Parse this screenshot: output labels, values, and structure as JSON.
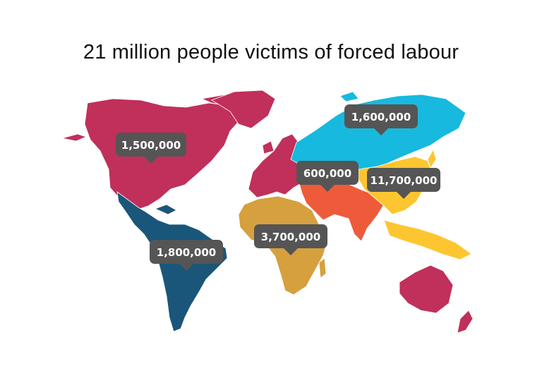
{
  "title": "21 million people victims of forced labour",
  "colors": {
    "north_america": "#c0305a",
    "latin_america": "#1a5679",
    "europe": "#c0305a",
    "africa": "#d6a03e",
    "middle_east": "#ee5b3a",
    "south_asia": "#ee5b3a",
    "russia_central_asia": "#17b9de",
    "east_asia_pacific": "#fdc631",
    "oceania": "#c0305a",
    "callout": "#555555",
    "callout_text": "#ffffff"
  },
  "callouts": [
    {
      "id": "north-america",
      "label": "1,500,000"
    },
    {
      "id": "latin-america",
      "label": "1,800,000"
    },
    {
      "id": "africa",
      "label": "3,700,000"
    },
    {
      "id": "russia-central-asia",
      "label": "1,600,000"
    },
    {
      "id": "middle-east",
      "label": "600,000"
    },
    {
      "id": "asia-pacific",
      "label": "11,700,000"
    }
  ]
}
